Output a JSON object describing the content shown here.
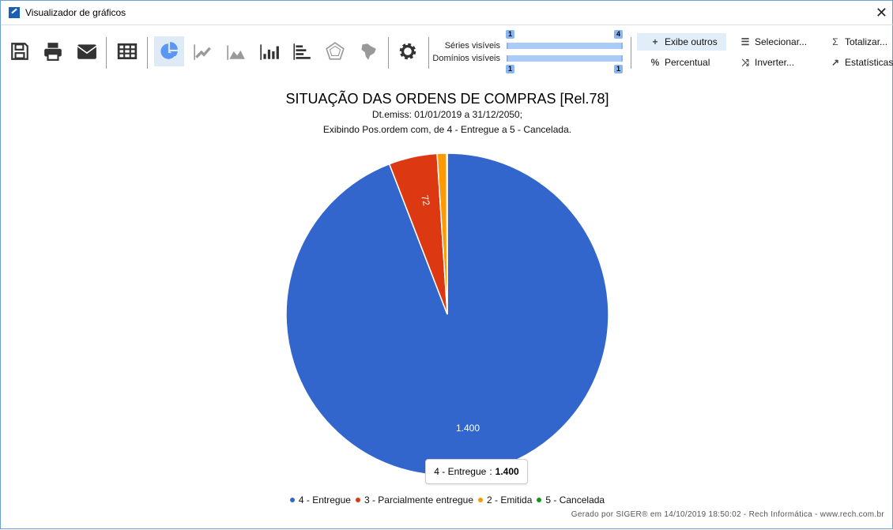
{
  "window": {
    "title": "Visualizador de gráficos",
    "close": "✕"
  },
  "toolbar": {
    "icons": [
      "save-icon",
      "print-icon",
      "email-icon",
      "table-icon",
      "pie-chart-icon",
      "line-chart-icon",
      "area-chart-icon",
      "bar-chart-icon",
      "horizontal-bar-icon",
      "radar-chart-icon",
      "map-icon",
      "settings-icon"
    ],
    "active": "pie-chart-icon",
    "series_label": "Séries visíveis",
    "series_min": "1",
    "series_max": "4",
    "domains_label": "Domínios visíveis",
    "domains_min": "1",
    "domains_max": "1",
    "exibe_outros": "Exibe outros",
    "percentual": "Percentual",
    "selecionar": "Selecionar...",
    "inverter": "Inverter...",
    "totalizar": "Totalizar...",
    "estatisticas": "Estatísticas"
  },
  "chart_data": {
    "type": "pie",
    "title": "SITUAÇÃO DAS ORDENS DE COMPRAS [Rel.78]",
    "subtitle1": "Dt.emiss: 01/01/2019 a 31/12/2050;",
    "subtitle2": "Exibindo Pos.ordem com, de 4 - Entregue a 5 - Cancelada.",
    "categories": [
      "4 - Entregue",
      "3 - Parcialmente entregue",
      "2 - Emitida",
      "5 - Cancelada"
    ],
    "values": [
      1400,
      72,
      14,
      1
    ],
    "data_labels": [
      "1.400",
      "72",
      "",
      ""
    ],
    "colors": [
      "#3366cc",
      "#dc3912",
      "#ff9900",
      "#109618"
    ],
    "legend": "bottom",
    "tooltip": {
      "label": "4 - Entregue",
      "value": "1.400"
    }
  },
  "footer": "Gerado por SIGER® em 14/10/2019 18:50:02 - Rech Informática - www.rech.com.br"
}
